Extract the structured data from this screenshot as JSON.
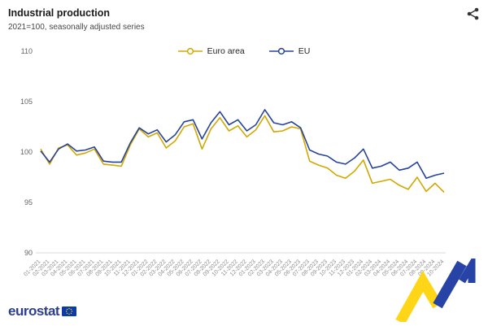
{
  "header": {
    "title": "Industrial production",
    "subtitle": "2021=100, seasonally adjusted series"
  },
  "footer": {
    "logo_text": "eurostat"
  },
  "icons": {
    "share": "share-icon",
    "eu_flag": "eu-flag-icon",
    "decoration": "decorative-zigzag"
  },
  "colors": {
    "euro_area": "#D2A800",
    "eu": "#26439C",
    "axis_text": "#666666",
    "xlabel_text": "#8d8d8d",
    "logo_blue": "#2E3E8F",
    "deco_yellow": "#FFD617",
    "deco_blue": "#2743A6"
  },
  "chart_data": {
    "type": "line",
    "title": "Industrial production",
    "subtitle": "2021=100, seasonally adjusted series",
    "ylim": [
      90,
      110
    ],
    "yticks": [
      90,
      95,
      100,
      105,
      110
    ],
    "grid": false,
    "legend_position": "top-center",
    "categories": [
      "01-2021",
      "02-2021",
      "03-2021",
      "04-2021",
      "05-2021",
      "06-2021",
      "07-2021",
      "08-2021",
      "09-2021",
      "10-2021",
      "11-2021",
      "12-2021",
      "01-2022",
      "02-2022",
      "03-2022",
      "04-2022",
      "05-2022",
      "06-2022",
      "07-2022",
      "08-2022",
      "09-2022",
      "10-2022",
      "11-2022",
      "12-2022",
      "01-2023",
      "02-2023",
      "03-2023",
      "04-2023",
      "05-2023",
      "06-2023",
      "07-2023",
      "08-2023",
      "09-2023",
      "10-2023",
      "11-2023",
      "12-2023",
      "01-2024",
      "02-2024",
      "03-2024",
      "04-2024",
      "05-2024",
      "06-2024",
      "07-2024",
      "08-2024",
      "09-2024",
      "10-2024"
    ],
    "series": [
      {
        "name": "Euro area",
        "color": "#D2A800",
        "values": [
          100.3,
          98.8,
          100.4,
          100.7,
          99.7,
          99.9,
          100.3,
          98.8,
          98.7,
          98.6,
          100.7,
          102.3,
          101.5,
          101.9,
          100.4,
          101.1,
          102.5,
          102.8,
          100.3,
          102.3,
          103.4,
          102.1,
          102.6,
          101.5,
          102.2,
          103.6,
          102.0,
          102.1,
          102.5,
          102.3,
          99.1,
          98.7,
          98.4,
          97.7,
          97.4,
          98.1,
          99.2,
          96.9,
          97.1,
          97.3,
          96.7,
          96.3,
          97.5,
          96.1,
          96.9,
          96.0
        ]
      },
      {
        "name": "EU",
        "color": "#26439C",
        "values": [
          100.1,
          99.0,
          100.3,
          100.8,
          100.1,
          100.2,
          100.5,
          99.1,
          99.0,
          99.0,
          100.9,
          102.4,
          101.8,
          102.2,
          101.0,
          101.7,
          103.0,
          103.2,
          101.3,
          102.9,
          104.0,
          102.7,
          103.2,
          102.1,
          102.7,
          104.2,
          102.9,
          102.7,
          103.0,
          102.4,
          100.2,
          99.8,
          99.6,
          99.0,
          98.8,
          99.4,
          100.3,
          98.4,
          98.6,
          99.0,
          98.2,
          98.4,
          99.0,
          97.4,
          97.7,
          97.9
        ]
      }
    ]
  }
}
